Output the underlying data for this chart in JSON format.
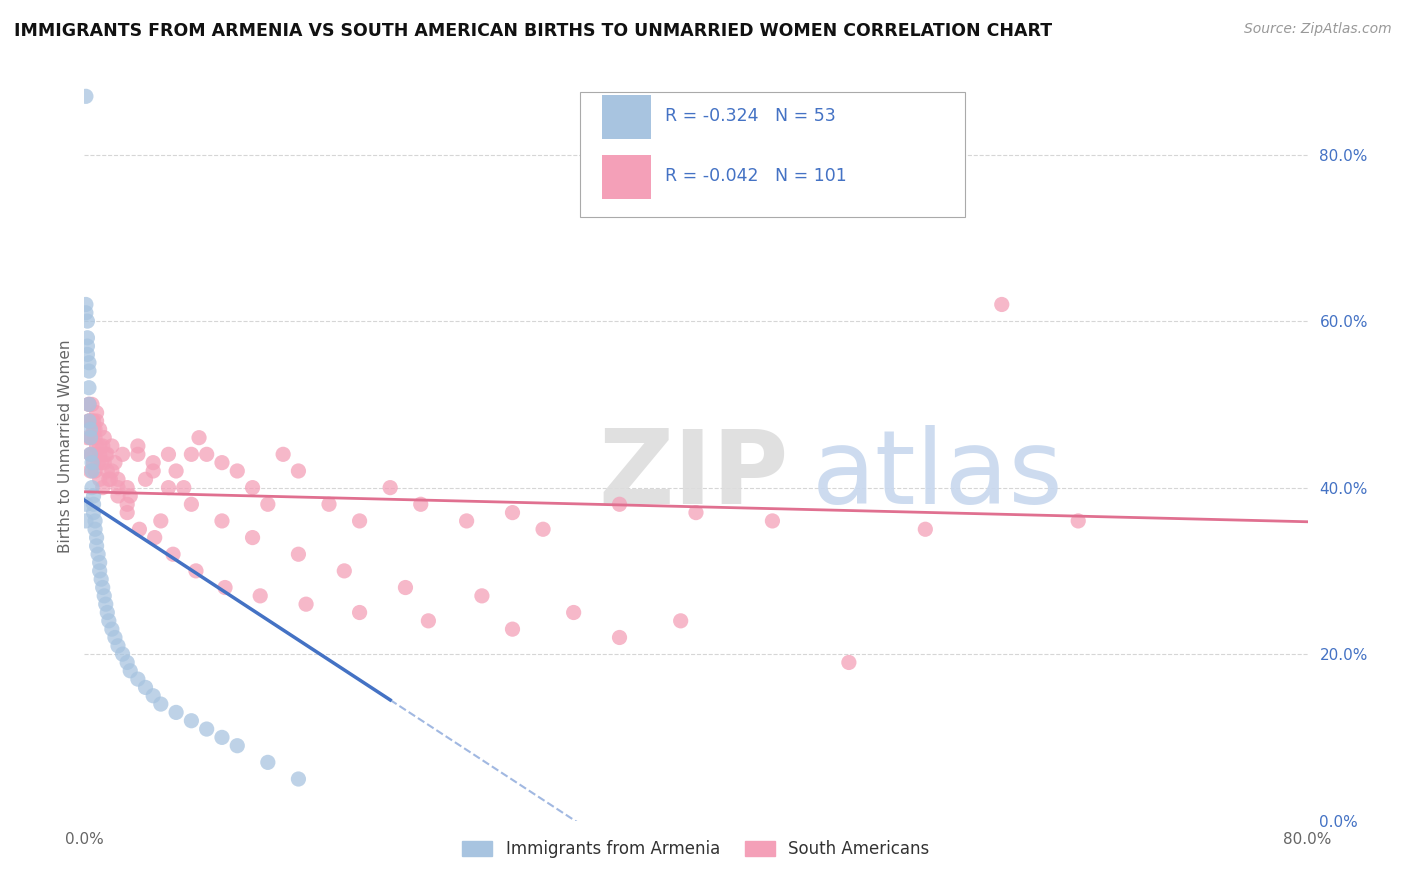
{
  "title": "IMMIGRANTS FROM ARMENIA VS SOUTH AMERICAN BIRTHS TO UNMARRIED WOMEN CORRELATION CHART",
  "source": "Source: ZipAtlas.com",
  "ylabel": "Births to Unmarried Women",
  "xlim": [
    0.0,
    0.8
  ],
  "ylim": [
    0.0,
    0.9
  ],
  "legend_label1": "Immigrants from Armenia",
  "legend_label2": "South Americans",
  "R1": "-0.324",
  "N1": "53",
  "R2": "-0.042",
  "N2": "101",
  "color_blue": "#a8c4e0",
  "color_pink": "#f4a0b8",
  "color_blue_text": "#4472c4",
  "line_blue": "#4472c4",
  "line_pink": "#e07090",
  "background_color": "#ffffff",
  "grid_color": "#cccccc",
  "blue_x": [
    0.001,
    0.001,
    0.001,
    0.002,
    0.002,
    0.002,
    0.002,
    0.003,
    0.003,
    0.003,
    0.003,
    0.003,
    0.004,
    0.004,
    0.004,
    0.005,
    0.005,
    0.005,
    0.006,
    0.006,
    0.006,
    0.007,
    0.007,
    0.008,
    0.008,
    0.009,
    0.01,
    0.01,
    0.011,
    0.012,
    0.013,
    0.014,
    0.015,
    0.016,
    0.018,
    0.02,
    0.022,
    0.025,
    0.028,
    0.03,
    0.035,
    0.04,
    0.045,
    0.05,
    0.06,
    0.07,
    0.08,
    0.09,
    0.1,
    0.12,
    0.14,
    0.001,
    0.001
  ],
  "blue_y": [
    0.87,
    0.62,
    0.61,
    0.6,
    0.58,
    0.57,
    0.56,
    0.55,
    0.54,
    0.52,
    0.5,
    0.48,
    0.47,
    0.46,
    0.44,
    0.43,
    0.42,
    0.4,
    0.39,
    0.38,
    0.37,
    0.36,
    0.35,
    0.34,
    0.33,
    0.32,
    0.31,
    0.3,
    0.29,
    0.28,
    0.27,
    0.26,
    0.25,
    0.24,
    0.23,
    0.22,
    0.21,
    0.2,
    0.19,
    0.18,
    0.17,
    0.16,
    0.15,
    0.14,
    0.13,
    0.12,
    0.11,
    0.1,
    0.09,
    0.07,
    0.05,
    0.38,
    0.36
  ],
  "pink_x": [
    0.002,
    0.003,
    0.003,
    0.004,
    0.004,
    0.005,
    0.005,
    0.006,
    0.006,
    0.007,
    0.007,
    0.008,
    0.008,
    0.009,
    0.01,
    0.01,
    0.011,
    0.012,
    0.013,
    0.014,
    0.015,
    0.016,
    0.018,
    0.02,
    0.022,
    0.025,
    0.028,
    0.03,
    0.035,
    0.04,
    0.045,
    0.05,
    0.055,
    0.06,
    0.065,
    0.07,
    0.075,
    0.08,
    0.09,
    0.1,
    0.11,
    0.12,
    0.13,
    0.14,
    0.16,
    0.18,
    0.2,
    0.22,
    0.25,
    0.28,
    0.3,
    0.35,
    0.4,
    0.45,
    0.5,
    0.55,
    0.6,
    0.65,
    0.003,
    0.004,
    0.005,
    0.006,
    0.007,
    0.008,
    0.01,
    0.012,
    0.015,
    0.018,
    0.022,
    0.028,
    0.035,
    0.045,
    0.055,
    0.07,
    0.09,
    0.11,
    0.14,
    0.17,
    0.21,
    0.26,
    0.32,
    0.39,
    0.003,
    0.005,
    0.007,
    0.01,
    0.013,
    0.017,
    0.022,
    0.028,
    0.036,
    0.046,
    0.058,
    0.073,
    0.092,
    0.115,
    0.145,
    0.18,
    0.225,
    0.28,
    0.35
  ],
  "pink_y": [
    0.46,
    0.5,
    0.48,
    0.44,
    0.42,
    0.46,
    0.44,
    0.43,
    0.47,
    0.42,
    0.44,
    0.48,
    0.45,
    0.43,
    0.41,
    0.44,
    0.43,
    0.4,
    0.46,
    0.44,
    0.42,
    0.41,
    0.45,
    0.43,
    0.41,
    0.44,
    0.4,
    0.39,
    0.45,
    0.41,
    0.43,
    0.36,
    0.44,
    0.42,
    0.4,
    0.44,
    0.46,
    0.44,
    0.43,
    0.42,
    0.4,
    0.38,
    0.44,
    0.42,
    0.38,
    0.36,
    0.4,
    0.38,
    0.36,
    0.37,
    0.35,
    0.38,
    0.37,
    0.36,
    0.19,
    0.35,
    0.62,
    0.36,
    0.48,
    0.46,
    0.5,
    0.48,
    0.46,
    0.49,
    0.47,
    0.45,
    0.44,
    0.42,
    0.4,
    0.38,
    0.44,
    0.42,
    0.4,
    0.38,
    0.36,
    0.34,
    0.32,
    0.3,
    0.28,
    0.27,
    0.25,
    0.24,
    0.5,
    0.48,
    0.47,
    0.45,
    0.43,
    0.41,
    0.39,
    0.37,
    0.35,
    0.34,
    0.32,
    0.3,
    0.28,
    0.27,
    0.26,
    0.25,
    0.24,
    0.23,
    0.22
  ]
}
